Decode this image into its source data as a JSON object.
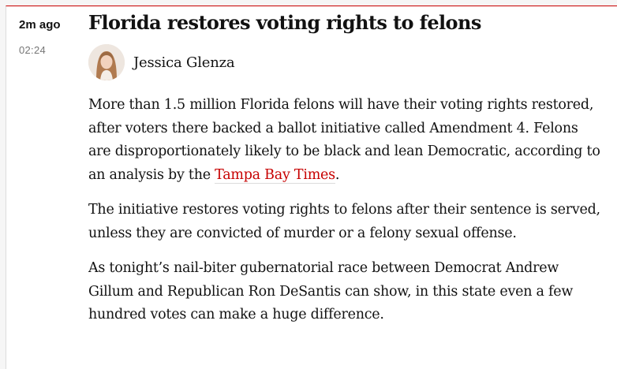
{
  "entry": {
    "time_ago": "2m ago",
    "timestamp": "02:24",
    "headline": "Florida restores voting rights to felons",
    "author": "Jessica Glenza",
    "paragraphs": [
      {
        "before": "More than 1.5 million Florida felons will have their voting rights restored, after voters there backed a ballot initiative called Amendment 4. Felons are disproportionately likely to be black and lean Democratic, according to an analysis by the ",
        "link": "Tampa Bay Times",
        "after": "."
      },
      {
        "text": "The initiative restores voting rights to felons after their sentence is served, unless they are convicted of murder or a felony sexual offense."
      },
      {
        "text": "As tonight’s nail-biter gubernatorial race between Democrat Andrew Gillum and Republican Ron DeSantis can show, in this state even a few hundred votes can make a huge difference."
      }
    ]
  },
  "colors": {
    "accent": "#c70000",
    "text": "#121212",
    "muted": "#767676"
  }
}
